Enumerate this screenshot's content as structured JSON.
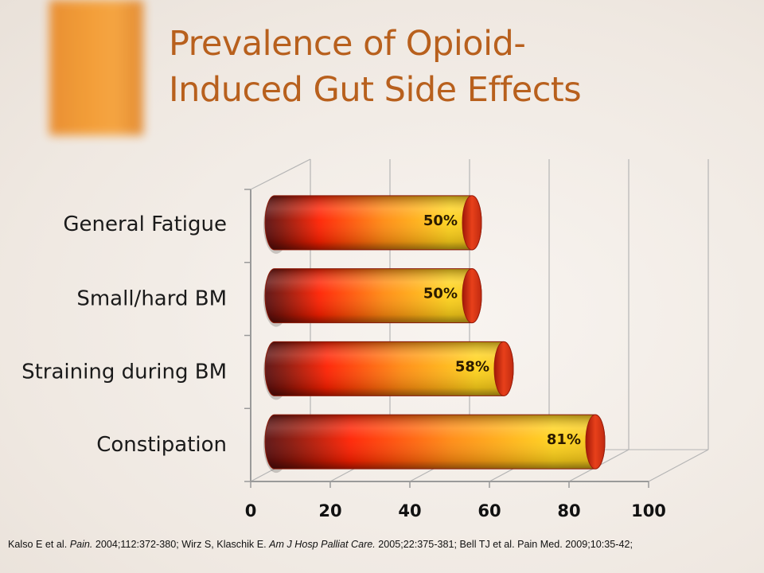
{
  "title_lines": [
    "Prevalence of Opioid-",
    "Induced Gut Side Effects"
  ],
  "chart_data": {
    "type": "bar",
    "orientation": "horizontal",
    "categories": [
      "General Fatigue",
      "Small/hard BM",
      "Straining during BM",
      "Constipation"
    ],
    "values": [
      50,
      50,
      58,
      81
    ],
    "data_labels": [
      "50%",
      "50%",
      "58%",
      "81%"
    ],
    "xlim": [
      0,
      100
    ],
    "x_ticks": [
      0,
      20,
      40,
      60,
      80,
      100
    ],
    "x_tick_labels": [
      "0",
      "20",
      "40",
      "60",
      "80",
      "100"
    ],
    "grid": true,
    "style": "3d-cylinder",
    "colors": {
      "bar_dark": "#5a0e0e",
      "bar_mid": "#ff1e00",
      "bar_light": "#ffd21a",
      "bar_end": "#e8401a",
      "grid": "#b5b5b5",
      "axis": "#9a9a9a"
    }
  },
  "footnote": {
    "parts": [
      {
        "text": "Kalso E et al. ",
        "italic": false
      },
      {
        "text": "Pain.",
        "italic": true
      },
      {
        "text": " 2004;112:372-380;  Wirz S, Klaschik E. ",
        "italic": false
      },
      {
        "text": "Am J Hosp Palliat Care.",
        "italic": true
      },
      {
        "text": " 2005;22:375-381;  Bell TJ et al. Pain Med. 2009;10:35-42;",
        "italic": false
      }
    ]
  }
}
